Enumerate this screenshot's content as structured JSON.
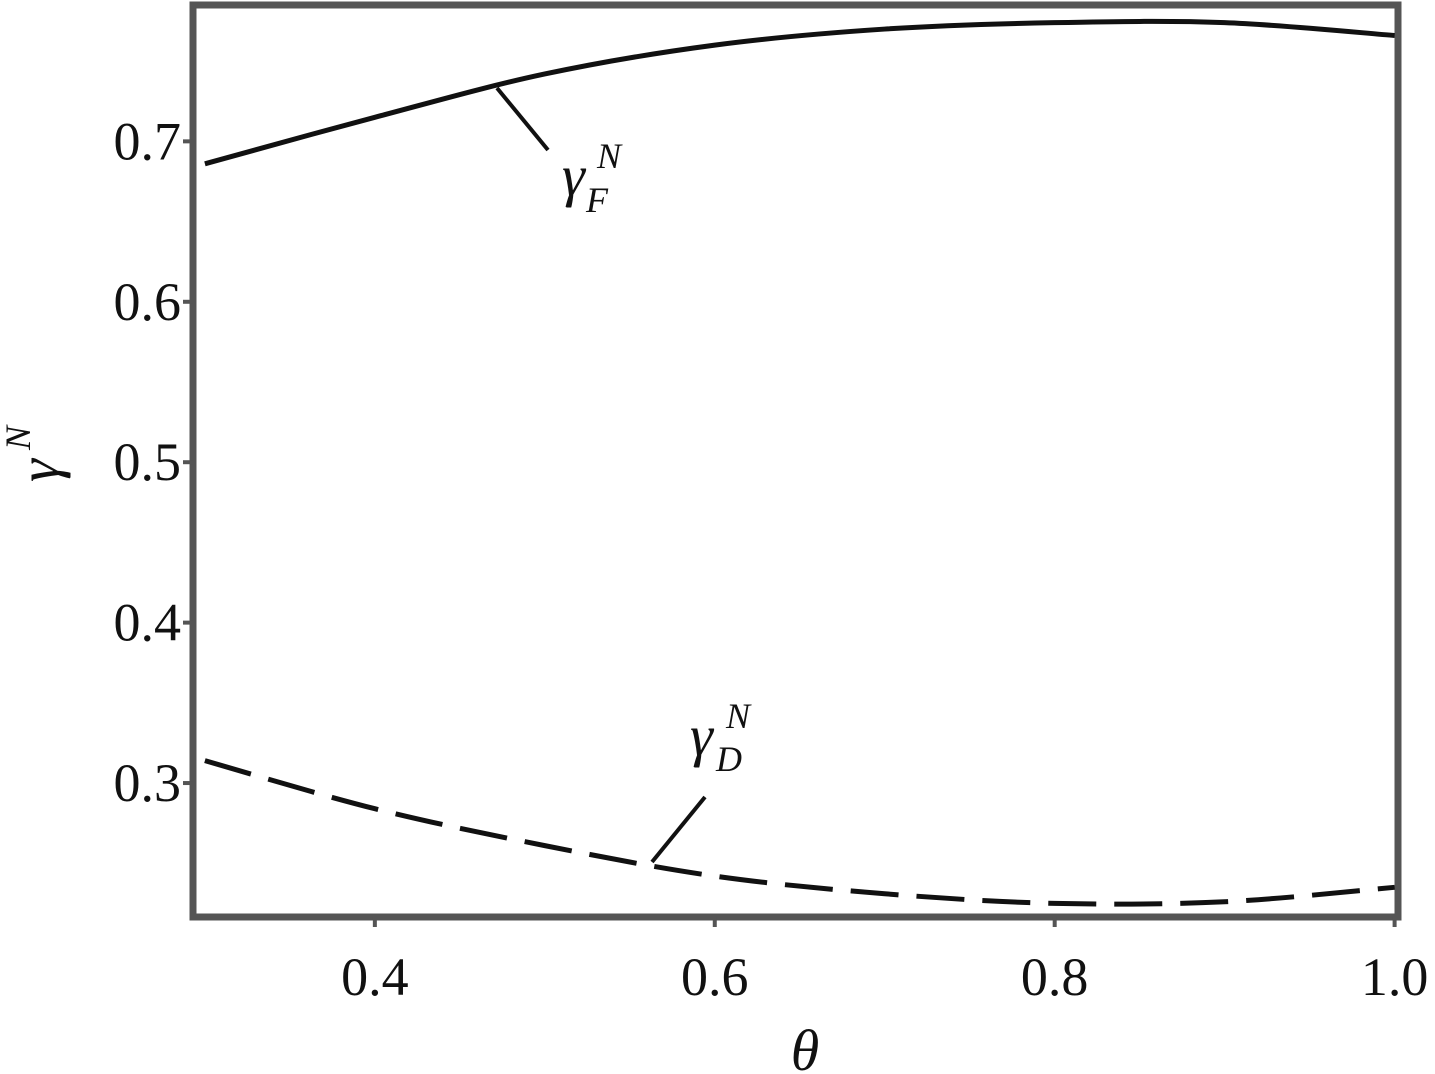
{
  "chart_data": {
    "type": "line",
    "x": [
      0.3,
      0.4,
      0.5,
      0.6,
      0.7,
      0.8,
      0.9,
      1.0
    ],
    "series": [
      {
        "name": "γF",
        "color": "#111111",
        "linestyle": "solid",
        "values": [
          0.686,
          0.715,
          0.742,
          0.76,
          0.77,
          0.774,
          0.774,
          0.766
        ]
      },
      {
        "name": "γD",
        "color": "#111111",
        "linestyle": "dashed",
        "values": [
          0.314,
          0.284,
          0.261,
          0.242,
          0.231,
          0.225,
          0.226,
          0.235
        ]
      }
    ],
    "annotations": [
      {
        "text": "γ",
        "sup": "N",
        "sub": "F"
      },
      {
        "text": "γ",
        "sup": "N",
        "sub": "D"
      }
    ],
    "xlabel": "θ",
    "ylabel": {
      "text": "γ",
      "sup": "N"
    },
    "xlim": [
      0.293,
      1.002
    ],
    "ylim": [
      0.2165,
      0.785
    ],
    "xticks": [
      0.4,
      0.6,
      0.8,
      {
        "value": 1,
        "label": "1.0"
      }
    ],
    "yticks": [
      0.3,
      0.4,
      0.5,
      0.6,
      0.7
    ],
    "grid": false
  }
}
